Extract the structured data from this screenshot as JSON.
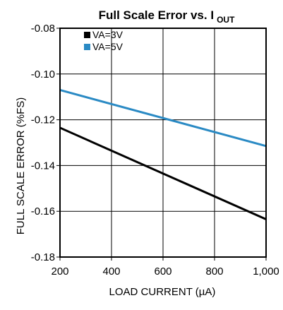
{
  "chart_data": {
    "type": "line",
    "title": {
      "main": "Full Scale Error vs. I",
      "subscript": "OUT"
    },
    "xlabel": "LOAD CURRENT (µA)",
    "ylabel": "FULL SCALE ERROR (%FS)",
    "xlim": [
      200,
      1000
    ],
    "ylim": [
      -0.18,
      -0.08
    ],
    "x_ticks": [
      200,
      400,
      600,
      800,
      1000
    ],
    "x_tick_labels": [
      "200",
      "400",
      "600",
      "800",
      "1,000"
    ],
    "y_ticks": [
      -0.08,
      -0.1,
      -0.12,
      -0.14,
      -0.16,
      -0.18
    ],
    "y_tick_labels": [
      "-0.08",
      "-0.10",
      "-0.12",
      "-0.14",
      "-0.16",
      "-0.18"
    ],
    "grid": true,
    "legend_position": "top-left",
    "series": [
      {
        "name": "VA=3V",
        "color": "#000000",
        "x": [
          200,
          1000
        ],
        "y": [
          -0.1235,
          -0.1635
        ]
      },
      {
        "name": "VA=5V",
        "color": "#2a8ac4",
        "x": [
          200,
          1000
        ],
        "y": [
          -0.107,
          -0.1315
        ]
      }
    ]
  }
}
